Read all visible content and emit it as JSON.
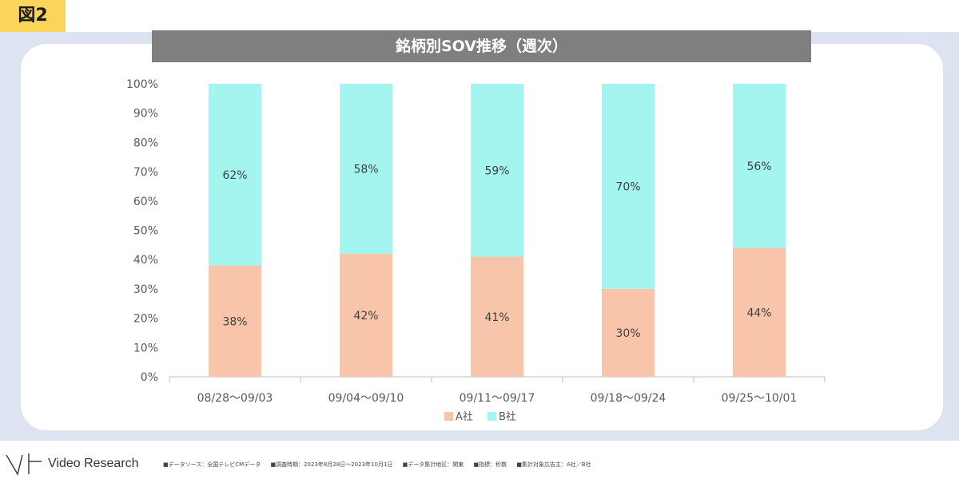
{
  "figure_label": "図2",
  "chart_data": {
    "type": "bar",
    "stacked": true,
    "title": "銘柄別SOV推移（週次）",
    "categories": [
      "08/28～09/03",
      "09/04～09/10",
      "09/11～09/17",
      "09/18～09/24",
      "09/25～10/01"
    ],
    "series": [
      {
        "name": "A社",
        "values": [
          38,
          42,
          41,
          30,
          44
        ],
        "labels": [
          "38%",
          "42%",
          "41%",
          "30%",
          "44%"
        ],
        "color": "#f8c4aa"
      },
      {
        "name": "B社",
        "values": [
          62,
          58,
          59,
          70,
          56
        ],
        "labels": [
          "62%",
          "58%",
          "59%",
          "70%",
          "56%"
        ],
        "color": "#a4f5f0"
      }
    ],
    "ylim": [
      0,
      100
    ],
    "yticks": [
      "0%",
      "10%",
      "20%",
      "30%",
      "40%",
      "50%",
      "60%",
      "70%",
      "80%",
      "90%",
      "100%"
    ],
    "grid": false,
    "legend": "bottom-center",
    "xlabel": "",
    "ylabel": ""
  },
  "footer": {
    "brand": "Video Research",
    "notes": [
      "■データソース：全国テレビCMデータ",
      "■調査時期：2023年8月28日～2023年10月1日",
      "■データ集計地区：関東",
      "■指標：秒数",
      "■集計対象広告主：A社／B社"
    ]
  }
}
